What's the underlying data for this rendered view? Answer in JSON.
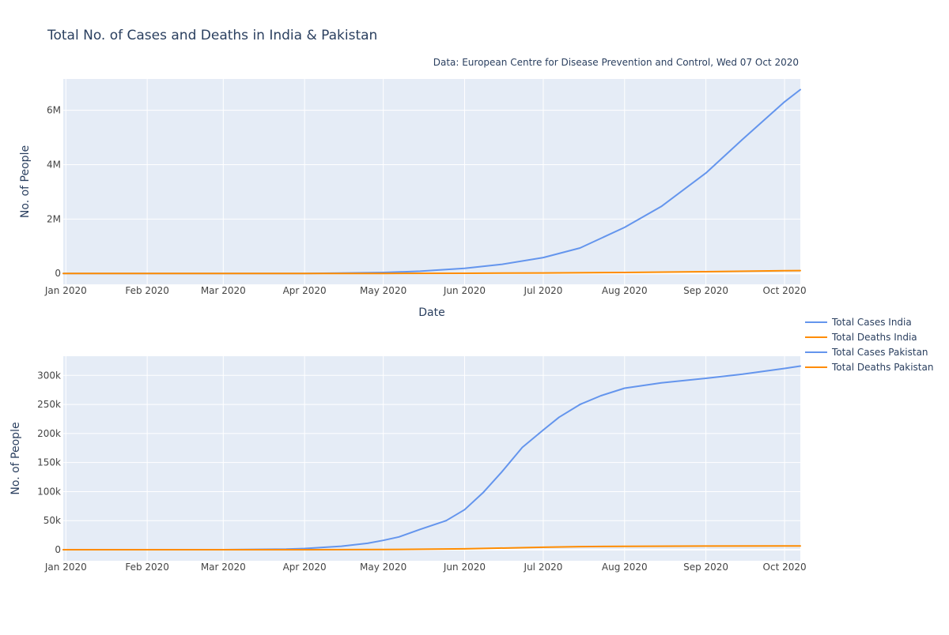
{
  "chart_data": [
    {
      "type": "line",
      "title": "Total No. of Cases and Deaths in India & Pakistan",
      "subtitle": "Data: European Centre for Disease Prevention and Control, Wed 07 Oct 2020",
      "xlabel": "Date",
      "ylabel": "No. of People",
      "xlim": [
        "2019-12-31",
        "2020-10-07"
      ],
      "ylim": [
        -400000,
        7150000
      ],
      "x_ticks": [
        {
          "date": "2020-01-01",
          "label": "Jan 2020"
        },
        {
          "date": "2020-02-01",
          "label": "Feb 2020"
        },
        {
          "date": "2020-03-01",
          "label": "Mar 2020"
        },
        {
          "date": "2020-04-01",
          "label": "Apr 2020"
        },
        {
          "date": "2020-05-01",
          "label": "May 2020"
        },
        {
          "date": "2020-06-01",
          "label": "Jun 2020"
        },
        {
          "date": "2020-07-01",
          "label": "Jul 2020"
        },
        {
          "date": "2020-08-01",
          "label": "Aug 2020"
        },
        {
          "date": "2020-09-01",
          "label": "Sep 2020"
        },
        {
          "date": "2020-10-01",
          "label": "Oct 2020"
        }
      ],
      "y_ticks": [
        {
          "value": 0,
          "label": "0"
        },
        {
          "value": 2000000,
          "label": "2M"
        },
        {
          "value": 4000000,
          "label": "4M"
        },
        {
          "value": 6000000,
          "label": "6M"
        }
      ],
      "grid": true,
      "series": [
        {
          "name": "Total Cases India",
          "color": "#6495ED",
          "points": [
            [
              "2019-12-31",
              0
            ],
            [
              "2020-03-01",
              3
            ],
            [
              "2020-04-01",
              1600
            ],
            [
              "2020-04-15",
              11000
            ],
            [
              "2020-05-01",
              35000
            ],
            [
              "2020-05-15",
              81000
            ],
            [
              "2020-06-01",
              190000
            ],
            [
              "2020-06-15",
              333000
            ],
            [
              "2020-07-01",
              585000
            ],
            [
              "2020-07-15",
              937000
            ],
            [
              "2020-08-01",
              1695000
            ],
            [
              "2020-08-15",
              2462000
            ],
            [
              "2020-09-01",
              3692000
            ],
            [
              "2020-09-15",
              4931000
            ],
            [
              "2020-10-01",
              6312000
            ],
            [
              "2020-10-07",
              6757000
            ]
          ]
        },
        {
          "name": "Total Deaths India",
          "color": "#FF8C00",
          "points": [
            [
              "2019-12-31",
              0
            ],
            [
              "2020-04-01",
              40
            ],
            [
              "2020-05-01",
              1150
            ],
            [
              "2020-06-01",
              5400
            ],
            [
              "2020-07-01",
              17400
            ],
            [
              "2020-08-01",
              36500
            ],
            [
              "2020-09-01",
              65300
            ],
            [
              "2020-10-01",
              98700
            ],
            [
              "2020-10-07",
              104500
            ]
          ]
        }
      ]
    },
    {
      "type": "line",
      "ylabel": "No. of People",
      "xlim": [
        "2019-12-31",
        "2020-10-07"
      ],
      "ylim": [
        -19000,
        333000
      ],
      "x_ticks": [
        {
          "date": "2020-01-01",
          "label": "Jan 2020"
        },
        {
          "date": "2020-02-01",
          "label": "Feb 2020"
        },
        {
          "date": "2020-03-01",
          "label": "Mar 2020"
        },
        {
          "date": "2020-04-01",
          "label": "Apr 2020"
        },
        {
          "date": "2020-05-01",
          "label": "May 2020"
        },
        {
          "date": "2020-06-01",
          "label": "Jun 2020"
        },
        {
          "date": "2020-07-01",
          "label": "Jul 2020"
        },
        {
          "date": "2020-08-01",
          "label": "Aug 2020"
        },
        {
          "date": "2020-09-01",
          "label": "Sep 2020"
        },
        {
          "date": "2020-10-01",
          "label": "Oct 2020"
        }
      ],
      "y_ticks": [
        {
          "value": 0,
          "label": "0"
        },
        {
          "value": 50000,
          "label": "50k"
        },
        {
          "value": 100000,
          "label": "100k"
        },
        {
          "value": 150000,
          "label": "150k"
        },
        {
          "value": 200000,
          "label": "200k"
        },
        {
          "value": 250000,
          "label": "250k"
        },
        {
          "value": 300000,
          "label": "300k"
        }
      ],
      "grid": true,
      "series": [
        {
          "name": "Total Cases Pakistan",
          "color": "#6495ED",
          "points": [
            [
              "2019-12-31",
              0
            ],
            [
              "2020-03-01",
              4
            ],
            [
              "2020-03-25",
              1000
            ],
            [
              "2020-04-01",
              2000
            ],
            [
              "2020-04-15",
              6000
            ],
            [
              "2020-04-25",
              11000
            ],
            [
              "2020-05-01",
              16000
            ],
            [
              "2020-05-07",
              22000
            ],
            [
              "2020-05-15",
              35000
            ],
            [
              "2020-05-25",
              50000
            ],
            [
              "2020-06-01",
              69000
            ],
            [
              "2020-06-08",
              98000
            ],
            [
              "2020-06-15",
              133000
            ],
            [
              "2020-06-23",
              176000
            ],
            [
              "2020-07-01",
              206000
            ],
            [
              "2020-07-07",
              228000
            ],
            [
              "2020-07-15",
              250000
            ],
            [
              "2020-07-23",
              265000
            ],
            [
              "2020-08-01",
              278000
            ],
            [
              "2020-08-15",
              287000
            ],
            [
              "2020-09-01",
              295000
            ],
            [
              "2020-09-15",
              302000
            ],
            [
              "2020-10-01",
              312000
            ],
            [
              "2020-10-07",
              316000
            ]
          ]
        },
        {
          "name": "Total Deaths Pakistan",
          "color": "#FF8C00",
          "points": [
            [
              "2019-12-31",
              0
            ],
            [
              "2020-04-01",
              26
            ],
            [
              "2020-05-01",
              350
            ],
            [
              "2020-06-01",
              1500
            ],
            [
              "2020-07-01",
              4300
            ],
            [
              "2020-07-15",
              5300
            ],
            [
              "2020-08-01",
              5900
            ],
            [
              "2020-09-01",
              6300
            ],
            [
              "2020-10-01",
              6500
            ],
            [
              "2020-10-07",
              6500
            ]
          ]
        }
      ]
    }
  ],
  "legend": {
    "placement": "right",
    "entries": [
      {
        "label": "Total Cases India",
        "color": "#6495ED"
      },
      {
        "label": "Total Deaths India",
        "color": "#FF8C00"
      },
      {
        "label": "Total Cases Pakistan",
        "color": "#6495ED"
      },
      {
        "label": "Total Deaths Pakistan",
        "color": "#FF8C00"
      }
    ]
  },
  "style": {
    "plot_bg": "#E5ECF6",
    "grid_color": "#ffffff",
    "text_color": "#2a3f5f",
    "tick_color": "#444444"
  }
}
